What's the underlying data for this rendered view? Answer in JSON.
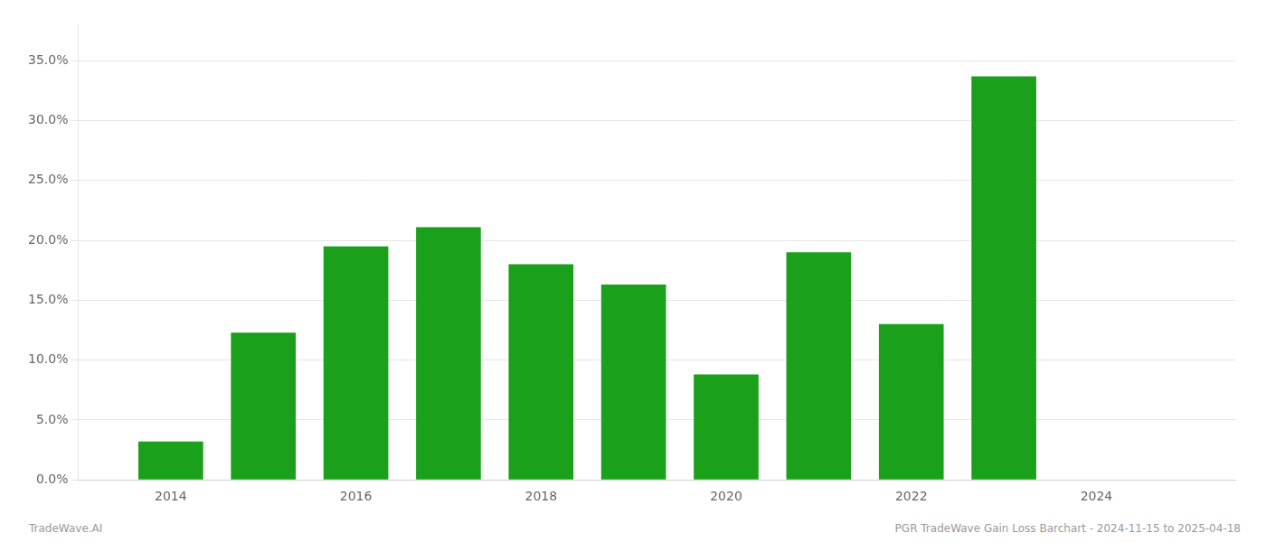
{
  "chart_data": {
    "type": "bar",
    "x": [
      2014,
      2015,
      2016,
      2017,
      2018,
      2019,
      2020,
      2021,
      2022,
      2023
    ],
    "values": [
      0.032,
      0.123,
      0.195,
      0.211,
      0.18,
      0.163,
      0.088,
      0.19,
      0.13,
      0.337
    ],
    "color": "#1aa01a",
    "xlim": [
      2013.0,
      2025.5
    ],
    "xticks": [
      2014,
      2016,
      2018,
      2020,
      2022,
      2024
    ],
    "ylim": [
      0,
      0.38
    ],
    "yticks": [
      {
        "value": 0.0,
        "label": "0.0%"
      },
      {
        "value": 0.05,
        "label": "5.0%"
      },
      {
        "value": 0.1,
        "label": "10.0%"
      },
      {
        "value": 0.15,
        "label": "15.0%"
      },
      {
        "value": 0.2,
        "label": "20.0%"
      },
      {
        "value": 0.25,
        "label": "25.0%"
      },
      {
        "value": 0.3,
        "label": "30.0%"
      },
      {
        "value": 0.35,
        "label": "35.0%"
      }
    ],
    "grid": true,
    "annotations": [
      "TradeWave.AI",
      "PGR TradeWave Gain Loss Barchart - 2024-11-15 to 2025-04-18"
    ]
  }
}
